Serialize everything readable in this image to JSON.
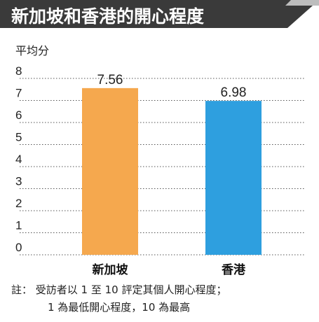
{
  "title": "新加坡和香港的開心程度",
  "chart_data": {
    "type": "bar",
    "title": "新加坡和香港的開心程度",
    "ylabel": "平均分",
    "xlabel": "",
    "categories": [
      "新加坡",
      "香港"
    ],
    "values": [
      7.56,
      6.98
    ],
    "data_labels": [
      "7.56",
      "6.98"
    ],
    "colors": [
      "#f5a84e",
      "#2e9fdf"
    ],
    "ylim": [
      0,
      8
    ],
    "yticks": [
      "0",
      "1",
      "2",
      "3",
      "4",
      "5",
      "6",
      "7",
      "8"
    ],
    "grid": true,
    "legend": "none"
  },
  "colors": {
    "banner_bg": "#3a3a3a",
    "banner_text": "#ffffff",
    "grid": "#555555"
  },
  "note": {
    "line1": "註： 受訪者以 1 至 10 評定其個人開心程度；",
    "line2": "1 為最低開心程度，10 為最高"
  }
}
